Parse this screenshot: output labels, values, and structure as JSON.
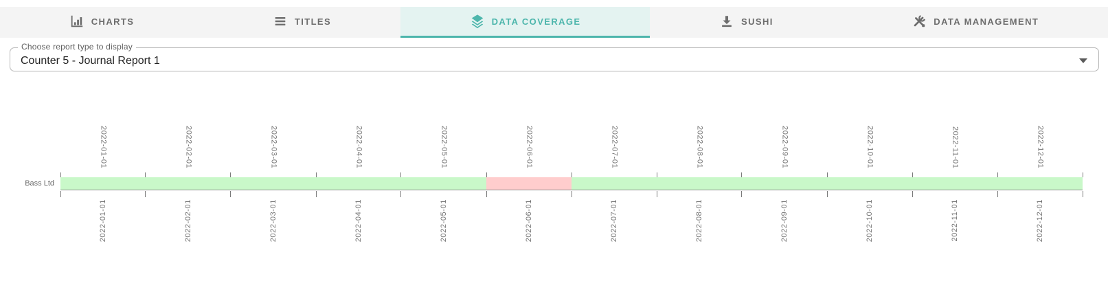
{
  "tab_bar": {
    "tabs": [
      {
        "label": "CHARTS",
        "icon": "bar-chart-icon",
        "active": false
      },
      {
        "label": "TITLES",
        "icon": "list-icon",
        "active": false
      },
      {
        "label": "DATA COVERAGE",
        "icon": "layers-icon",
        "active": true
      },
      {
        "label": "SUSHI",
        "icon": "download-icon",
        "active": false
      },
      {
        "label": "DATA MANAGEMENT",
        "icon": "tools-icon",
        "active": false
      }
    ]
  },
  "report_select": {
    "label": "Choose report type to display",
    "value": "Counter 5 - Journal Report 1"
  },
  "colors": {
    "accent_teal": "#4db6ac",
    "active_tab_bg": "#e4f3f1",
    "covered_green": "#c9f8c9",
    "missing_red": "#ffcdcd"
  },
  "chart_data": {
    "type": "heatmap",
    "title": "",
    "x": [
      "2022-01-01",
      "2022-02-01",
      "2022-03-01",
      "2022-04-01",
      "2022-05-01",
      "2022-06-01",
      "2022-07-01",
      "2022-08-01",
      "2022-09-01",
      "2022-10-01",
      "2022-11-01",
      "2022-12-01"
    ],
    "x_axis_position": "labels shown on both top and bottom, rotated 90 degrees",
    "rows": [
      {
        "name": "Bass Ltd",
        "values": [
          1,
          1,
          1,
          1,
          1,
          0,
          1,
          1,
          1,
          1,
          1,
          1
        ]
      }
    ],
    "value_colors": {
      "1": "#c9f8c9",
      "0": "#ffcdcd"
    },
    "value_meaning": {
      "1": "covered",
      "0": "missing"
    },
    "grid": "tick marks at each month boundary above and below the bar"
  }
}
